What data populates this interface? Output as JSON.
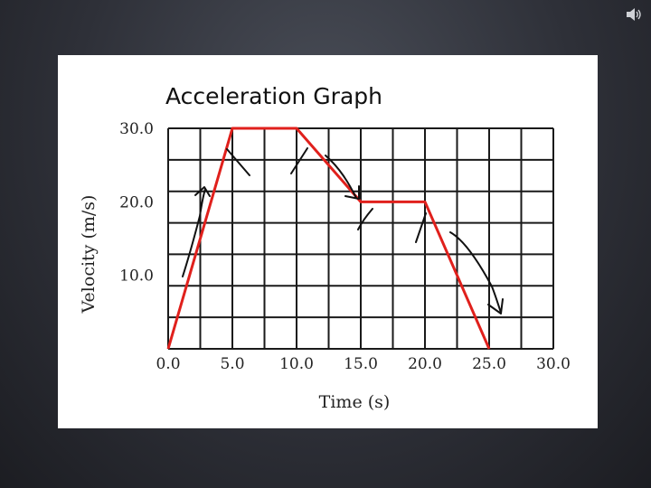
{
  "slide": {
    "speaker_icon": "speaker-icon"
  },
  "chart_data": {
    "type": "line",
    "title": "Acceleration Graph",
    "xlabel": "Time (s)",
    "ylabel": "Velocity (m/s)",
    "xlim": [
      0,
      30
    ],
    "ylim": [
      0,
      30
    ],
    "x_ticks": [
      "0.0",
      "5.0",
      "10.0",
      "15.0",
      "20.0",
      "25.0",
      "30.0"
    ],
    "y_ticks": [
      "10.0",
      "20.0",
      "30.0"
    ],
    "grid": true,
    "series": [
      {
        "color": "#e0201c",
        "x": [
          0,
          5,
          10,
          15,
          20,
          25
        ],
        "y": [
          0,
          30,
          30,
          20,
          20,
          0
        ]
      }
    ],
    "annotations": "hand-drawn arrows along sloped segments and tick marks at slope changes"
  }
}
